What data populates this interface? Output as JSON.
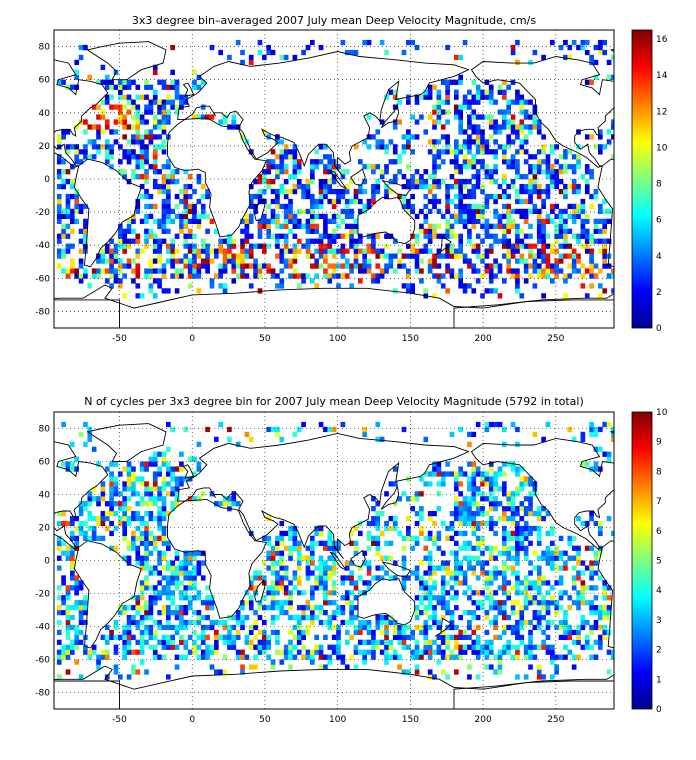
{
  "panels": [
    {
      "title": "3x3 degree bin–averaged 2007 July mean Deep Velocity Magnitude, cm/s",
      "x_ticks": [
        "-50",
        "0",
        "50",
        "100",
        "150",
        "200",
        "250"
      ],
      "x_tick_values": [
        -50,
        0,
        50,
        100,
        150,
        200,
        250
      ],
      "y_ticks": [
        "80",
        "60",
        "40",
        "20",
        "0",
        "-20",
        "-40",
        "-60",
        "-80"
      ],
      "y_tick_values": [
        80,
        60,
        40,
        20,
        0,
        -20,
        -40,
        -60,
        -80
      ],
      "colorbar_ticks": [
        "16",
        "14",
        "12",
        "10",
        "8",
        "6",
        "4",
        "2",
        "0"
      ],
      "colorbar_tick_values": [
        16,
        14,
        12,
        10,
        8,
        6,
        4,
        2,
        0
      ],
      "colorbar_range": [
        0,
        16.5
      ]
    },
    {
      "title": "N of cycles per 3x3 degree bin for 2007 July mean Deep Velocity Magnitude (5792 in total)",
      "x_ticks": [
        "-50",
        "0",
        "50",
        "100",
        "150",
        "200",
        "250"
      ],
      "x_tick_values": [
        -50,
        0,
        50,
        100,
        150,
        200,
        250
      ],
      "y_ticks": [
        "80",
        "60",
        "40",
        "20",
        "0",
        "-20",
        "-40",
        "-60",
        "-80"
      ],
      "y_tick_values": [
        80,
        60,
        40,
        20,
        0,
        -20,
        -40,
        -60,
        -80
      ],
      "colorbar_ticks": [
        "10",
        "9",
        "8",
        "7",
        "6",
        "5",
        "4",
        "3",
        "2",
        "1",
        "0"
      ],
      "colorbar_tick_values": [
        10,
        9,
        8,
        7,
        6,
        5,
        4,
        3,
        2,
        1,
        0
      ],
      "colorbar_range": [
        0,
        10
      ]
    }
  ],
  "map": {
    "lon_range": [
      -95,
      290
    ],
    "lat_range": [
      -90,
      90
    ],
    "grid": "dotted",
    "colormap": "jet"
  }
}
